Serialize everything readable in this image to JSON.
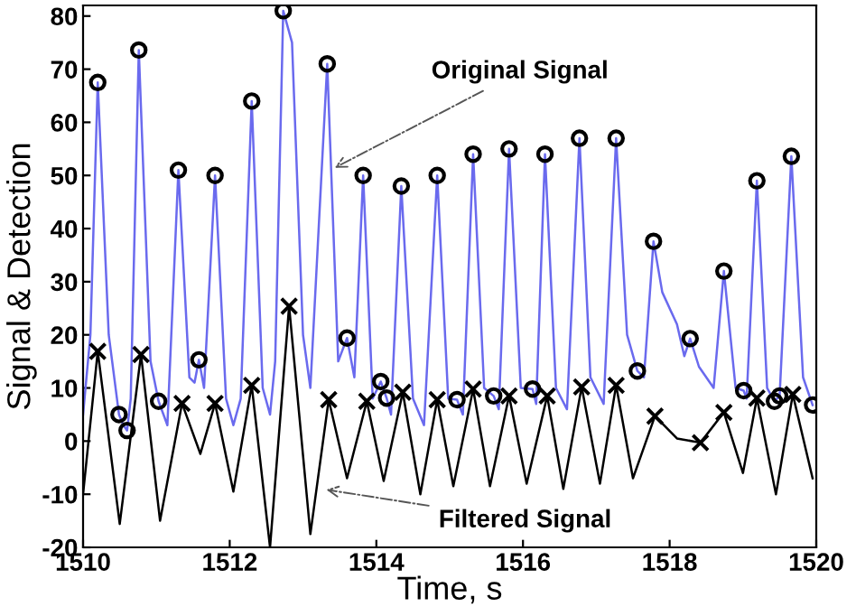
{
  "chart_data": {
    "type": "line",
    "xlabel": "Time, s",
    "ylabel": "Signal & Detection",
    "xlim": [
      1510,
      1520
    ],
    "xticks": [
      1510,
      1512,
      1514,
      1516,
      1518,
      1520
    ],
    "ylim": [
      -20,
      82
    ],
    "yticks": [
      -20,
      -10,
      0,
      10,
      20,
      30,
      40,
      50,
      60,
      70,
      80
    ],
    "grid": false,
    "legend": false,
    "series": [
      {
        "color": "#6a6aee",
        "marker": "none",
        "line_style": "solid",
        "x": [
          1510.0,
          1510.1,
          1510.2,
          1510.35,
          1510.49,
          1510.55,
          1510.6,
          1510.65,
          1510.76,
          1510.92,
          1511.03,
          1511.15,
          1511.3,
          1511.45,
          1511.52,
          1511.58,
          1511.65,
          1511.8,
          1511.95,
          1512.05,
          1512.15,
          1512.3,
          1512.45,
          1512.55,
          1512.62,
          1512.73,
          1512.85,
          1513.0,
          1513.1,
          1513.33,
          1513.48,
          1513.6,
          1513.7,
          1513.82,
          1513.95,
          1514.06,
          1514.14,
          1514.2,
          1514.34,
          1514.5,
          1514.65,
          1514.83,
          1514.98,
          1515.1,
          1515.18,
          1515.32,
          1515.47,
          1515.6,
          1515.67,
          1515.81,
          1515.97,
          1516.13,
          1516.18,
          1516.3,
          1516.45,
          1516.6,
          1516.77,
          1516.92,
          1517.1,
          1517.27,
          1517.42,
          1517.56,
          1517.65,
          1517.78,
          1517.9,
          1518.1,
          1518.2,
          1518.28,
          1518.4,
          1518.6,
          1518.74,
          1518.9,
          1519.01,
          1519.05,
          1519.19,
          1519.33,
          1519.43,
          1519.5,
          1519.66,
          1519.82,
          1519.95
        ],
        "values": [
          5,
          20,
          67.5,
          20,
          5,
          3,
          2,
          8,
          73.6,
          15,
          7.5,
          3,
          51,
          12,
          11,
          15.3,
          10,
          50,
          8,
          3,
          8,
          64,
          10,
          5,
          15,
          81,
          75,
          20,
          10,
          71,
          15,
          19.4,
          12,
          50,
          8,
          11.2,
          8.1,
          5,
          48,
          8,
          3,
          50,
          8,
          7.8,
          5,
          54,
          10,
          8.5,
          6,
          55,
          10,
          9.8,
          7,
          54,
          10,
          6,
          57,
          12,
          7,
          57,
          20,
          13.2,
          12,
          37.6,
          28,
          22,
          16,
          19.3,
          14,
          10,
          32,
          10,
          9.5,
          8,
          49,
          10,
          7.5,
          8.5,
          53.6,
          12,
          6.8
        ]
      },
      {
        "color": "#000000",
        "marker": "none",
        "line_style": "solid",
        "x": [
          1510.0,
          1510.2,
          1510.5,
          1510.79,
          1511.05,
          1511.35,
          1511.6,
          1511.8,
          1512.05,
          1512.3,
          1512.55,
          1512.81,
          1513.1,
          1513.35,
          1513.6,
          1513.87,
          1514.1,
          1514.36,
          1514.6,
          1514.83,
          1515.05,
          1515.32,
          1515.55,
          1515.81,
          1516.05,
          1516.33,
          1516.55,
          1516.8,
          1517.05,
          1517.27,
          1517.5,
          1517.8,
          1518.1,
          1518.42,
          1518.74,
          1519.0,
          1519.19,
          1519.45,
          1519.68,
          1519.95
        ],
        "values": [
          -10,
          16.9,
          -15.6,
          16.3,
          -15,
          7.1,
          -2.4,
          7.1,
          -9.5,
          10.5,
          -20,
          25.4,
          -17.5,
          7.8,
          -7,
          7.5,
          -7.5,
          9.2,
          -10,
          7.8,
          -8.5,
          9.8,
          -8.5,
          8.5,
          -8,
          8.5,
          -9,
          10.2,
          -8,
          10.5,
          -7,
          4.7,
          0.5,
          -0.3,
          5.4,
          -6,
          8.1,
          -10,
          8.8,
          -7
        ]
      },
      {
        "type": "scatter",
        "color": "#000000",
        "marker": "circle",
        "x": [
          1510.2,
          1510.76,
          1511.3,
          1511.8,
          1512.3,
          1512.73,
          1513.33,
          1513.82,
          1514.34,
          1514.83,
          1515.32,
          1515.81,
          1516.3,
          1516.77,
          1517.27,
          1517.78,
          1518.74,
          1519.19,
          1519.66,
          1510.49,
          1510.6,
          1511.03,
          1511.58,
          1513.6,
          1514.06,
          1514.14,
          1515.1,
          1515.6,
          1516.13,
          1517.56,
          1518.28,
          1519.01,
          1519.43,
          1519.5,
          1519.95
        ],
        "values": [
          67.5,
          73.6,
          51,
          50,
          64,
          81,
          71,
          50,
          48,
          50,
          54,
          55,
          54,
          57,
          57,
          37.6,
          32,
          49,
          53.6,
          5,
          2,
          7.5,
          15.3,
          19.4,
          11.2,
          8.1,
          7.8,
          8.5,
          9.8,
          13.2,
          19.3,
          9.5,
          7.5,
          8.5,
          6.8
        ]
      },
      {
        "type": "scatter",
        "color": "#000000",
        "marker": "cross",
        "x": [
          1510.2,
          1510.79,
          1511.35,
          1511.8,
          1512.3,
          1512.81,
          1513.35,
          1513.87,
          1514.36,
          1514.83,
          1515.32,
          1515.81,
          1516.33,
          1516.8,
          1517.27,
          1517.8,
          1518.42,
          1518.74,
          1519.19,
          1519.68
        ],
        "values": [
          16.9,
          16.3,
          7.1,
          7.1,
          10.5,
          25.4,
          7.8,
          7.5,
          9.2,
          7.8,
          9.8,
          8.5,
          8.5,
          10.2,
          10.5,
          4.7,
          -0.3,
          5.4,
          8.1,
          8.8
        ]
      }
    ],
    "annotations": [
      {
        "text": "Original Signal",
        "x": 1513.37,
        "y": 51
      },
      {
        "text": "Filtered Signal",
        "x": 1513.25,
        "y": -9
      }
    ]
  }
}
